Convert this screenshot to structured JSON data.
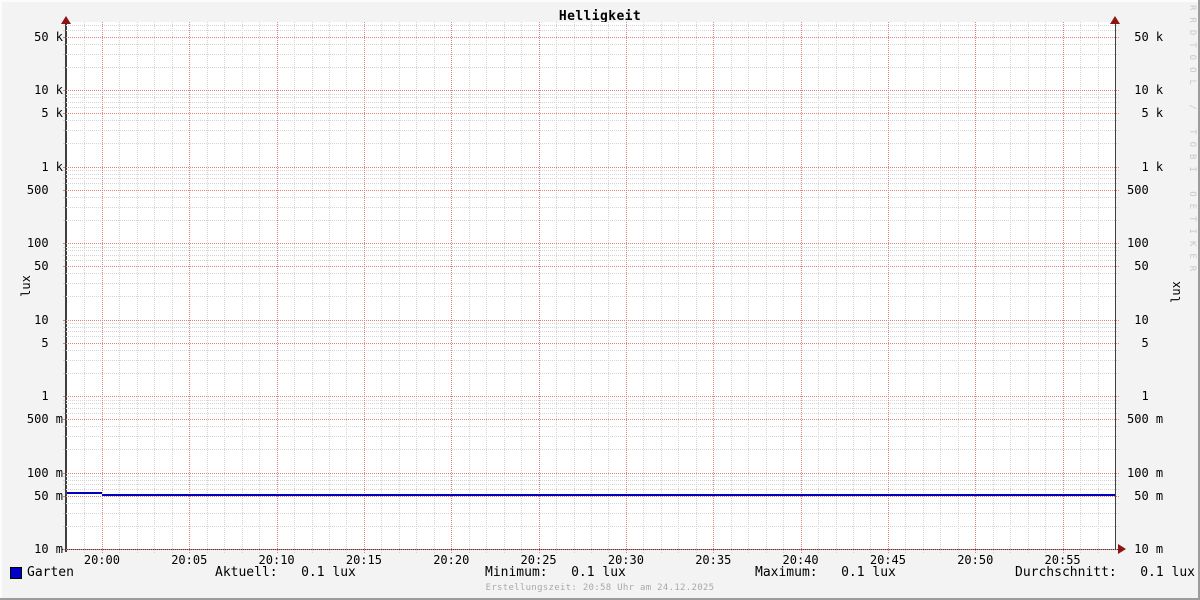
{
  "title": "Helligkeit",
  "axis": {
    "left_label": "lux",
    "right_label": "lux"
  },
  "watermark": "RRDTOOL / TOBI OETIKER",
  "footer": "Erstellungszeit: 20:58 Uhr am 24.12.2025",
  "legend": {
    "name": "Garten",
    "color": "#0000c8"
  },
  "stats": {
    "aktuell": "Aktuell:   0.1 lux",
    "minimum": "Minimum:   0.1 lux",
    "maximum": "Maximum:   0.1 lux",
    "durchschnitt": "Durchschnitt:   0.1 lux"
  },
  "chart_data": {
    "type": "line",
    "title": "Helligkeit",
    "ylabel": "lux",
    "y_scale": "log",
    "ylim": [
      0.01,
      70000
    ],
    "grid": true,
    "legend_position": "bottom",
    "x_window": {
      "start": "19:58",
      "end": "20:58",
      "start_min": -2,
      "end_min": 58
    },
    "x_minor_step_min": 1,
    "x_major_step_min": 5,
    "x_ticks": [
      {
        "t": 0,
        "label": "20:00"
      },
      {
        "t": 5,
        "label": "20:05"
      },
      {
        "t": 10,
        "label": "20:10"
      },
      {
        "t": 15,
        "label": "20:15"
      },
      {
        "t": 20,
        "label": "20:20"
      },
      {
        "t": 25,
        "label": "20:25"
      },
      {
        "t": 30,
        "label": "20:30"
      },
      {
        "t": 35,
        "label": "20:35"
      },
      {
        "t": 40,
        "label": "20:40"
      },
      {
        "t": 45,
        "label": "20:45"
      },
      {
        "t": 50,
        "label": "20:50"
      },
      {
        "t": 55,
        "label": "20:55"
      }
    ],
    "y_ticks": [
      {
        "v": 50000,
        "label": " 50 k"
      },
      {
        "v": 10000,
        "label": " 10 k"
      },
      {
        "v": 5000,
        "label": "  5 k"
      },
      {
        "v": 1000,
        "label": "  1 k"
      },
      {
        "v": 500,
        "label": "500  "
      },
      {
        "v": 100,
        "label": "100  "
      },
      {
        "v": 50,
        "label": " 50  "
      },
      {
        "v": 10,
        "label": " 10  "
      },
      {
        "v": 5,
        "label": "  5  "
      },
      {
        "v": 1,
        "label": "  1  "
      },
      {
        "v": 0.5,
        "label": "500 m"
      },
      {
        "v": 0.1,
        "label": "100 m"
      },
      {
        "v": 0.05,
        "label": " 50 m"
      },
      {
        "v": 0.01,
        "label": " 10 m"
      }
    ],
    "series": [
      {
        "name": "Garten",
        "unit": "lux",
        "color": "#0000c0",
        "segments": [
          {
            "from_min": -2,
            "to_min": 0,
            "value": 0.054
          },
          {
            "from_min": 0,
            "to_min": 58,
            "value": 0.0515
          }
        ],
        "stats": {
          "aktuell": "0.1 lux",
          "minimum": "0.1 lux",
          "maximum": "0.1 lux",
          "durchschnitt": "0.1 lux"
        }
      }
    ],
    "colors": {
      "background": "#f3f3f3",
      "canvas": "#ffffff",
      "major_grid": "#e08080",
      "minor_grid": "#d4d4d4",
      "axis": "#3f3f3f",
      "arrow": "#8b1515"
    }
  }
}
